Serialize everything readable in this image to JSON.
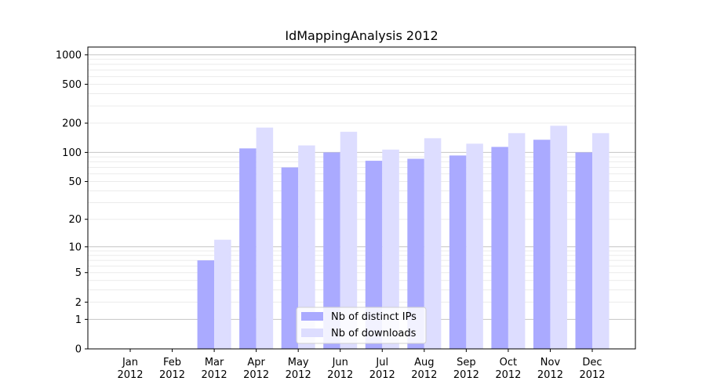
{
  "chart_data": {
    "type": "bar",
    "title": "IdMappingAnalysis 2012",
    "xlabel": "",
    "ylabel": "",
    "y_scale": "symlog",
    "ylim": [
      0,
      1200
    ],
    "y_ticks": [
      0,
      1,
      2,
      5,
      10,
      20,
      50,
      100,
      200,
      500,
      1000
    ],
    "grid": "horizontal",
    "legend_position": "bottom-center",
    "categories": [
      "Jan\n2012",
      "Feb\n2012",
      "Mar\n2012",
      "Apr\n2012",
      "May\n2012",
      "Jun\n2012",
      "Jul\n2012",
      "Aug\n2012",
      "Sep\n2012",
      "Oct\n2012",
      "Nov\n2012",
      "Dec\n2012"
    ],
    "series": [
      {
        "name": "Nb of distinct IPs",
        "color": "#aaaaff",
        "values": [
          0,
          0,
          7,
          110,
          70,
          100,
          82,
          86,
          93,
          114,
          135,
          100
        ]
      },
      {
        "name": "Nb of downloads",
        "color": "#ddddff",
        "values": [
          0,
          0,
          12,
          180,
          118,
          163,
          107,
          140,
          123,
          158,
          188,
          158
        ]
      }
    ]
  }
}
